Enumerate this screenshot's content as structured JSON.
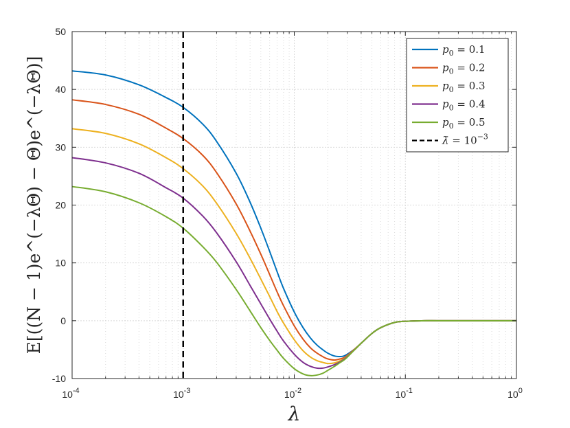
{
  "chart_data": {
    "type": "line",
    "title": "",
    "xlabel": "λ",
    "ylabel": "E[((N − 1)e^(−λΘ) − Θ)e^(−λΘ)]",
    "xscale": "log",
    "xlim": [
      0.0001,
      1
    ],
    "ylim": [
      -10,
      50
    ],
    "grid": "on (major and minor, dotted)",
    "legend_position": "top-right",
    "x_ticks": [
      {
        "value": 0.0001,
        "base": "10",
        "exp": "-4"
      },
      {
        "value": 0.001,
        "base": "10",
        "exp": "-3"
      },
      {
        "value": 0.01,
        "base": "10",
        "exp": "-2"
      },
      {
        "value": 0.1,
        "base": "10",
        "exp": "-1"
      },
      {
        "value": 1,
        "base": "10",
        "exp": "0"
      }
    ],
    "y_ticks": [
      {
        "value": -10,
        "label": "-10"
      },
      {
        "value": 0,
        "label": "0"
      },
      {
        "value": 10,
        "label": "10"
      },
      {
        "value": 20,
        "label": "20"
      },
      {
        "value": 30,
        "label": "30"
      },
      {
        "value": 40,
        "label": "40"
      },
      {
        "value": 50,
        "label": "50"
      }
    ],
    "x": [
      0.0001,
      0.0002,
      0.0004,
      0.0007,
      0.001,
      0.0015,
      0.002,
      0.003,
      0.004,
      0.005,
      0.006,
      0.007,
      0.008,
      0.01,
      0.012,
      0.014,
      0.016,
      0.018,
      0.02,
      0.023,
      0.026,
      0.028,
      0.03,
      0.035,
      0.04,
      0.05,
      0.06,
      0.08,
      0.1,
      0.15,
      0.2,
      0.5,
      1
    ],
    "series": [
      {
        "name": "p0 = 0.1",
        "color": "#0072BD",
        "values": [
          43.2,
          42.5,
          40.8,
          38.6,
          36.9,
          34.0,
          31.0,
          25.5,
          20.5,
          16.0,
          12.0,
          8.5,
          5.6,
          1.5,
          -1.2,
          -3.0,
          -4.2,
          -5.0,
          -5.6,
          -6.1,
          -6.2,
          -6.1,
          -5.8,
          -4.9,
          -3.9,
          -2.2,
          -1.2,
          -0.3,
          -0.1,
          0,
          0,
          0,
          0
        ]
      },
      {
        "name": "p0 = 0.2",
        "color": "#D95319",
        "values": [
          38.2,
          37.4,
          35.7,
          33.3,
          31.5,
          28.6,
          25.6,
          20.2,
          15.5,
          11.5,
          8.0,
          5.0,
          2.6,
          -0.9,
          -3.2,
          -4.7,
          -5.6,
          -6.2,
          -6.6,
          -6.8,
          -6.6,
          -6.4,
          -6.0,
          -4.9,
          -3.9,
          -2.2,
          -1.2,
          -0.3,
          -0.1,
          0,
          0,
          0,
          0
        ]
      },
      {
        "name": "p0 = 0.3",
        "color": "#EDB120",
        "values": [
          33.2,
          32.4,
          30.6,
          28.2,
          26.3,
          23.3,
          20.3,
          15.1,
          10.8,
          7.2,
          4.2,
          1.6,
          -0.4,
          -3.3,
          -5.2,
          -6.3,
          -6.9,
          -7.2,
          -7.4,
          -7.3,
          -6.9,
          -6.6,
          -6.1,
          -5.0,
          -3.9,
          -2.2,
          -1.2,
          -0.3,
          -0.1,
          0,
          0,
          0,
          0
        ]
      },
      {
        "name": "p0 = 0.4",
        "color": "#7E2F8E",
        "values": [
          28.2,
          27.3,
          25.5,
          23.0,
          21.2,
          18.1,
          15.2,
          10.2,
          6.1,
          2.9,
          0.3,
          -1.8,
          -3.5,
          -5.8,
          -7.2,
          -7.9,
          -8.2,
          -8.2,
          -8.0,
          -7.6,
          -7.1,
          -6.7,
          -6.2,
          -5.0,
          -3.9,
          -2.2,
          -1.2,
          -0.3,
          -0.1,
          0,
          0,
          0,
          0
        ]
      },
      {
        "name": "p0 = 0.5",
        "color": "#77AC30",
        "values": [
          23.2,
          22.3,
          20.4,
          18.0,
          16.0,
          12.8,
          10.1,
          5.4,
          1.7,
          -1.2,
          -3.4,
          -5.1,
          -6.5,
          -8.3,
          -9.2,
          -9.5,
          -9.4,
          -9.1,
          -8.6,
          -7.9,
          -7.2,
          -6.8,
          -6.3,
          -5.0,
          -3.9,
          -2.2,
          -1.2,
          -0.3,
          -0.1,
          0,
          0,
          0,
          0
        ]
      }
    ],
    "reference_line": {
      "name": "λ̄ = 10^(−3)",
      "x": 0.001,
      "color": "#000000",
      "style": "dashed"
    },
    "legend_entries": [
      {
        "symbol": "p",
        "sub": "0",
        "rest": " = 0.1",
        "color": "#0072BD",
        "style": "solid"
      },
      {
        "symbol": "p",
        "sub": "0",
        "rest": " = 0.2",
        "color": "#D95319",
        "style": "solid"
      },
      {
        "symbol": "p",
        "sub": "0",
        "rest": " = 0.3",
        "color": "#EDB120",
        "style": "solid"
      },
      {
        "symbol": "p",
        "sub": "0",
        "rest": " = 0.4",
        "color": "#7E2F8E",
        "style": "solid"
      },
      {
        "symbol": "p",
        "sub": "0",
        "rest": " = 0.5",
        "color": "#77AC30",
        "style": "solid"
      },
      {
        "symbol": "λ̄",
        "sub": "",
        "rest": " = 10",
        "sup": "−3",
        "color": "#000000",
        "style": "dashed"
      }
    ]
  }
}
